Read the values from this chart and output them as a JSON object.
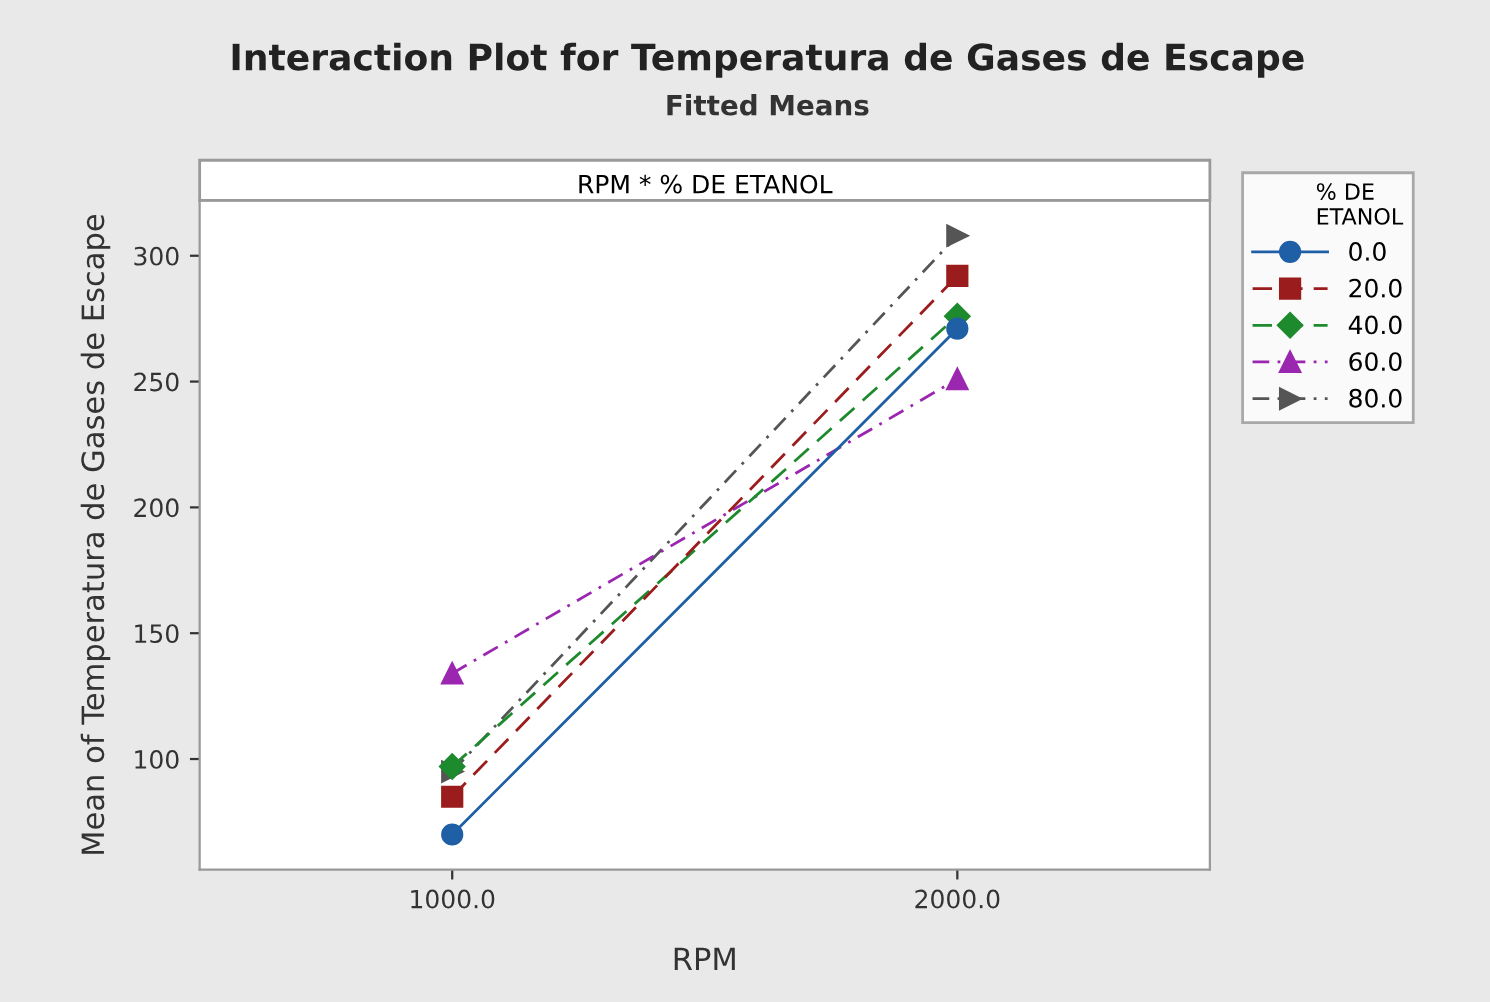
{
  "chart_data": {
    "type": "line",
    "title": "Interaction Plot for Temperatura de Gases de Escape",
    "subtitle": "Fitted Means",
    "xlabel": "RPM",
    "ylabel": "Mean of Temperatura de Gases de Escape",
    "legend_title": "% DE\nETANOL",
    "annotations": [
      "RPM * % DE ETANOL"
    ],
    "x": [
      1000,
      2000
    ],
    "xlim": [
      500,
      2500
    ],
    "xticks": [
      {
        "value": 1000,
        "label": "1000.0"
      },
      {
        "value": 2000,
        "label": "2000.0"
      }
    ],
    "ylim": [
      56,
      322
    ],
    "yticks": [
      100,
      150,
      200,
      250,
      300
    ],
    "grid": false,
    "legend": "right",
    "series": [
      {
        "name": "0.0",
        "color": "#1f5fa6",
        "values": [
          70,
          271
        ],
        "marker": "circle",
        "line_style": "solid"
      },
      {
        "name": "20.0",
        "color": "#9b1c1c",
        "values": [
          85,
          292
        ],
        "marker": "square",
        "line_style": "dashed"
      },
      {
        "name": "40.0",
        "color": "#1e8a2e",
        "values": [
          97,
          276
        ],
        "marker": "diamond",
        "line_style": "dashed"
      },
      {
        "name": "60.0",
        "color": "#9b27b0",
        "values": [
          134,
          251
        ],
        "marker": "triangle",
        "line_style": "dashdot"
      },
      {
        "name": "80.0",
        "color": "#555555",
        "values": [
          95,
          308
        ],
        "marker": "triangle_right",
        "line_style": "dashdot"
      }
    ]
  }
}
